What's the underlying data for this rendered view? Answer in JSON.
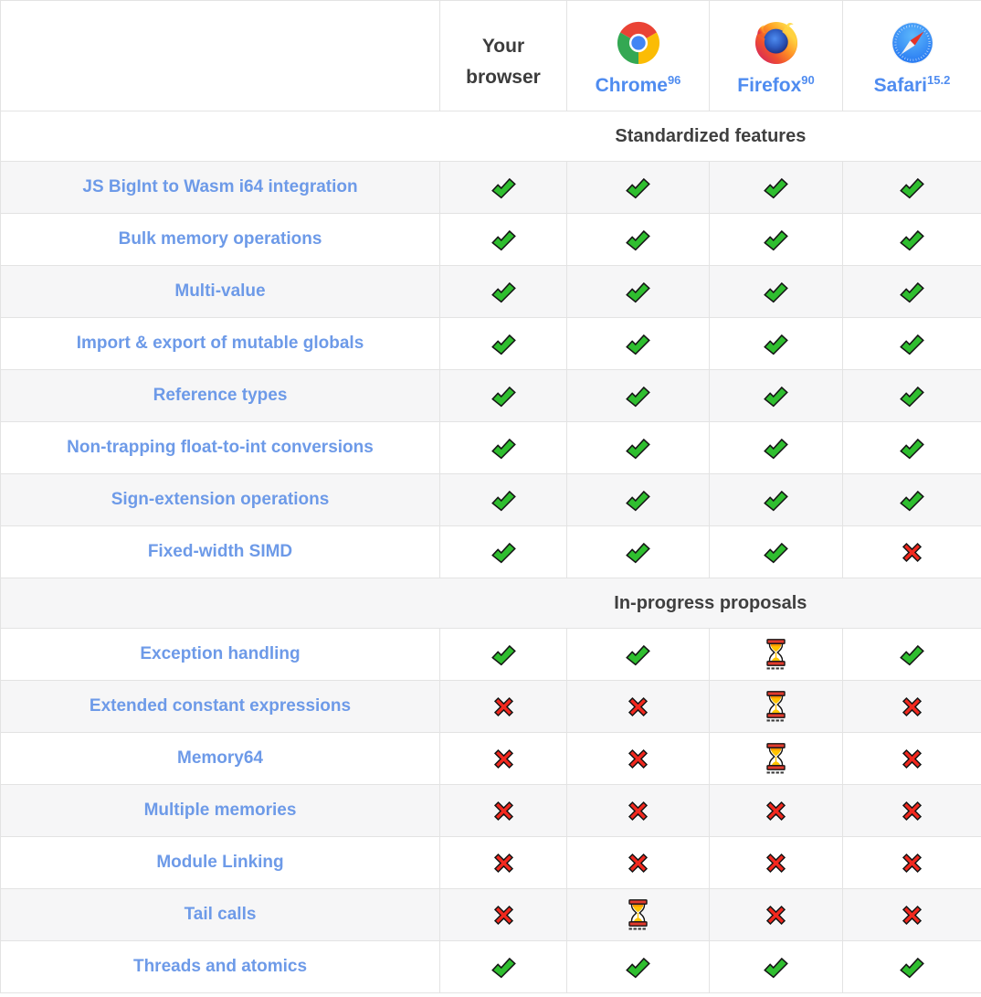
{
  "header": {
    "your_browser": {
      "line1": "Your",
      "line2": "browser"
    },
    "browsers": [
      {
        "name": "Chrome",
        "version": "96",
        "icon": "chrome-logo"
      },
      {
        "name": "Firefox",
        "version": "90",
        "icon": "firefox-logo"
      },
      {
        "name": "Safari",
        "version": "15.2",
        "icon": "safari-logo"
      }
    ]
  },
  "status_icons": {
    "yes": "check-icon",
    "no": "cross-icon",
    "progress": "hourglass-icon"
  },
  "sections": [
    {
      "title": "Standardized features",
      "rows": [
        {
          "feature": "JS BigInt to Wasm i64 integration",
          "support": [
            "yes",
            "yes",
            "yes",
            "yes"
          ]
        },
        {
          "feature": "Bulk memory operations",
          "support": [
            "yes",
            "yes",
            "yes",
            "yes"
          ]
        },
        {
          "feature": "Multi-value",
          "support": [
            "yes",
            "yes",
            "yes",
            "yes"
          ]
        },
        {
          "feature": "Import & export of mutable globals",
          "support": [
            "yes",
            "yes",
            "yes",
            "yes"
          ]
        },
        {
          "feature": "Reference types",
          "support": [
            "yes",
            "yes",
            "yes",
            "yes"
          ]
        },
        {
          "feature": "Non-trapping float-to-int conversions",
          "support": [
            "yes",
            "yes",
            "yes",
            "yes"
          ]
        },
        {
          "feature": "Sign-extension operations",
          "support": [
            "yes",
            "yes",
            "yes",
            "yes"
          ]
        },
        {
          "feature": "Fixed-width SIMD",
          "support": [
            "yes",
            "yes",
            "yes",
            "no"
          ]
        }
      ]
    },
    {
      "title": "In-progress proposals",
      "rows": [
        {
          "feature": "Exception handling",
          "support": [
            "yes",
            "yes",
            "progress",
            "yes"
          ]
        },
        {
          "feature": "Extended constant expressions",
          "support": [
            "no",
            "no",
            "progress",
            "no"
          ]
        },
        {
          "feature": "Memory64",
          "support": [
            "no",
            "no",
            "progress",
            "no"
          ]
        },
        {
          "feature": "Multiple memories",
          "support": [
            "no",
            "no",
            "no",
            "no"
          ]
        },
        {
          "feature": "Module Linking",
          "support": [
            "no",
            "no",
            "no",
            "no"
          ]
        },
        {
          "feature": "Tail calls",
          "support": [
            "no",
            "progress",
            "no",
            "no"
          ]
        },
        {
          "feature": "Threads and atomics",
          "support": [
            "yes",
            "yes",
            "yes",
            "yes"
          ]
        }
      ]
    }
  ],
  "colors": {
    "feature_link": "#6d9ae8",
    "browser_link": "#4f8cf0",
    "section_heading": "#3f3f3f",
    "row_stripe": "#f6f6f7",
    "border": "#e3e3e3",
    "check_green": "#2fbe2f",
    "cross_red": "#f3281e",
    "hourglass_sand": "#ffc400",
    "hourglass_cap_red": "#e23b2e",
    "chrome_blue": "#4285f4",
    "safari_blue": "#2f7cf3"
  }
}
